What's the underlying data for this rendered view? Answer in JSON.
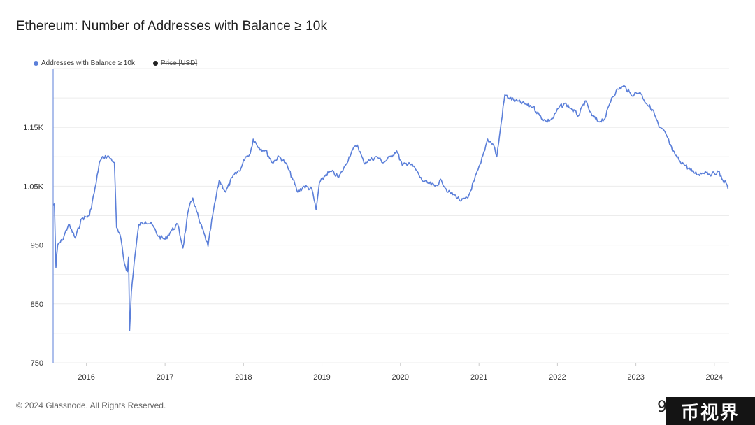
{
  "title": "Ethereum: Number of Addresses with Balance ≥ 10k",
  "legend": [
    {
      "label": "Addresses with Balance ≥ 10k",
      "color": "#5b7fd9",
      "active": true
    },
    {
      "label": "Price [USD]",
      "color": "#222222",
      "active": false
    }
  ],
  "footer": {
    "copyright": "© 2024 Glassnode. All Rights Reserved."
  },
  "watermark": {
    "text": "币视界",
    "partial_left": "9"
  },
  "chart_data": {
    "type": "line",
    "title": "Ethereum: Number of Addresses with Balance ≥ 10k",
    "xlabel": "",
    "ylabel": "",
    "x_ticks": [
      "2016",
      "2017",
      "2018",
      "2019",
      "2020",
      "2021",
      "2022",
      "2023",
      "2024"
    ],
    "y_ticks": [
      {
        "value": 750,
        "label": "750"
      },
      {
        "value": 850,
        "label": "850"
      },
      {
        "value": 950,
        "label": "950"
      },
      {
        "value": 1050,
        "label": "1.05K"
      },
      {
        "value": 1150,
        "label": "1.15K"
      }
    ],
    "xlim": [
      "2015-07-30",
      "2024-03-10"
    ],
    "ylim": [
      750,
      1250
    ],
    "grid": true,
    "legend_position": "top-left",
    "series": [
      {
        "name": "Addresses with Balance ≥ 10k",
        "color": "#5b7fd9",
        "points": [
          [
            "2015-07-30",
            1018
          ],
          [
            "2015-08-05",
            1020
          ],
          [
            "2015-08-12",
            912
          ],
          [
            "2015-08-20",
            950
          ],
          [
            "2015-09-10",
            958
          ],
          [
            "2015-10-10",
            985
          ],
          [
            "2015-11-10",
            962
          ],
          [
            "2015-12-10",
            995
          ],
          [
            "2016-01-15",
            1000
          ],
          [
            "2016-02-15",
            1055
          ],
          [
            "2016-03-01",
            1090
          ],
          [
            "2016-03-20",
            1100
          ],
          [
            "2016-04-15",
            1100
          ],
          [
            "2016-05-10",
            1090
          ],
          [
            "2016-05-20",
            980
          ],
          [
            "2016-06-10",
            960
          ],
          [
            "2016-06-25",
            920
          ],
          [
            "2016-07-10",
            905
          ],
          [
            "2016-07-15",
            930
          ],
          [
            "2016-07-20",
            805
          ],
          [
            "2016-07-28",
            870
          ],
          [
            "2016-08-10",
            920
          ],
          [
            "2016-09-01",
            985
          ],
          [
            "2016-10-01",
            990
          ],
          [
            "2016-11-01",
            985
          ],
          [
            "2016-12-01",
            965
          ],
          [
            "2017-01-01",
            960
          ],
          [
            "2017-02-01",
            975
          ],
          [
            "2017-03-01",
            985
          ],
          [
            "2017-03-25",
            945
          ],
          [
            "2017-04-20",
            1010
          ],
          [
            "2017-05-10",
            1030
          ],
          [
            "2017-06-10",
            990
          ],
          [
            "2017-07-01",
            970
          ],
          [
            "2017-07-20",
            948
          ],
          [
            "2017-08-10",
            1000
          ],
          [
            "2017-09-10",
            1060
          ],
          [
            "2017-10-10",
            1040
          ],
          [
            "2017-11-10",
            1065
          ],
          [
            "2017-12-20",
            1080
          ],
          [
            "2018-01-10",
            1100
          ],
          [
            "2018-02-01",
            1105
          ],
          [
            "2018-02-15",
            1130
          ],
          [
            "2018-03-15",
            1115
          ],
          [
            "2018-04-15",
            1110
          ],
          [
            "2018-05-15",
            1090
          ],
          [
            "2018-06-15",
            1100
          ],
          [
            "2018-07-15",
            1090
          ],
          [
            "2018-08-15",
            1065
          ],
          [
            "2018-09-10",
            1040
          ],
          [
            "2018-10-10",
            1050
          ],
          [
            "2018-11-15",
            1045
          ],
          [
            "2018-12-05",
            1010
          ],
          [
            "2018-12-20",
            1055
          ],
          [
            "2019-01-20",
            1070
          ],
          [
            "2019-02-15",
            1075
          ],
          [
            "2019-03-20",
            1065
          ],
          [
            "2019-04-20",
            1085
          ],
          [
            "2019-05-20",
            1110
          ],
          [
            "2019-06-15",
            1120
          ],
          [
            "2019-07-15",
            1090
          ],
          [
            "2019-08-15",
            1095
          ],
          [
            "2019-09-15",
            1100
          ],
          [
            "2019-10-15",
            1090
          ],
          [
            "2019-11-15",
            1100
          ],
          [
            "2019-12-15",
            1110
          ],
          [
            "2020-01-10",
            1085
          ],
          [
            "2020-02-10",
            1090
          ],
          [
            "2020-03-10",
            1080
          ],
          [
            "2020-04-10",
            1060
          ],
          [
            "2020-05-10",
            1055
          ],
          [
            "2020-06-10",
            1050
          ],
          [
            "2020-07-10",
            1060
          ],
          [
            "2020-08-10",
            1040
          ],
          [
            "2020-09-10",
            1035
          ],
          [
            "2020-10-10",
            1025
          ],
          [
            "2020-11-10",
            1030
          ],
          [
            "2020-12-10",
            1060
          ],
          [
            "2021-01-10",
            1090
          ],
          [
            "2021-02-10",
            1130
          ],
          [
            "2021-03-10",
            1120
          ],
          [
            "2021-03-25",
            1100
          ],
          [
            "2021-04-15",
            1160
          ],
          [
            "2021-05-01",
            1205
          ],
          [
            "2021-05-20",
            1200
          ],
          [
            "2021-06-20",
            1195
          ],
          [
            "2021-08-01",
            1190
          ],
          [
            "2021-09-10",
            1185
          ],
          [
            "2021-10-10",
            1170
          ],
          [
            "2021-11-10",
            1160
          ],
          [
            "2021-12-10",
            1165
          ],
          [
            "2022-01-10",
            1185
          ],
          [
            "2022-02-10",
            1190
          ],
          [
            "2022-03-10",
            1180
          ],
          [
            "2022-04-10",
            1170
          ],
          [
            "2022-05-10",
            1195
          ],
          [
            "2022-06-10",
            1170
          ],
          [
            "2022-07-10",
            1160
          ],
          [
            "2022-08-10",
            1165
          ],
          [
            "2022-09-10",
            1200
          ],
          [
            "2022-10-10",
            1215
          ],
          [
            "2022-11-10",
            1220
          ],
          [
            "2022-12-10",
            1205
          ],
          [
            "2023-01-20",
            1210
          ],
          [
            "2023-02-20",
            1190
          ],
          [
            "2023-03-20",
            1180
          ],
          [
            "2023-04-20",
            1150
          ],
          [
            "2023-05-20",
            1140
          ],
          [
            "2023-06-20",
            1110
          ],
          [
            "2023-07-20",
            1095
          ],
          [
            "2023-08-20",
            1085
          ],
          [
            "2023-09-20",
            1075
          ],
          [
            "2023-10-20",
            1070
          ],
          [
            "2023-11-20",
            1075
          ],
          [
            "2023-12-20",
            1070
          ],
          [
            "2024-01-20",
            1075
          ],
          [
            "2024-02-10",
            1060
          ],
          [
            "2024-02-25",
            1055
          ],
          [
            "2024-03-05",
            1045
          ]
        ]
      }
    ]
  }
}
